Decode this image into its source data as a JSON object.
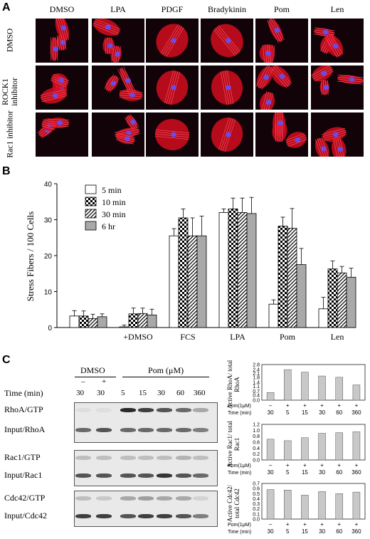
{
  "panelA": {
    "letter": "A",
    "columns": [
      "DMSO",
      "LPA",
      "PDGF",
      "Bradykinin",
      "Pom",
      "Len"
    ],
    "rows": [
      "DMSO",
      "ROCK1 inhibitor",
      "Rac1 inhibitor"
    ]
  },
  "panelB": {
    "letter": "B",
    "chart_data": {
      "type": "bar",
      "ylabel": "Stress Fibers / 100 Cells",
      "ylim": [
        0,
        40
      ],
      "yticks": [
        0,
        10,
        20,
        30,
        40
      ],
      "categories": [
        "",
        "+DMSO",
        "FCS",
        "LPA",
        "Pom",
        "Len"
      ],
      "series": [
        {
          "name": "5 min",
          "pattern": "white",
          "values": [
            3.2,
            0.2,
            25.5,
            32.0,
            6.5,
            5.2
          ],
          "errors": [
            1.5,
            0.5,
            2.0,
            1.0,
            1.2,
            3.2
          ]
        },
        {
          "name": "10 min",
          "pattern": "checker",
          "values": [
            3.2,
            3.8,
            30.5,
            33.0,
            28.2,
            16.3
          ],
          "errors": [
            1.4,
            1.6,
            2.5,
            3.0,
            2.5,
            2.2
          ]
        },
        {
          "name": "30 min",
          "pattern": "hatch",
          "values": [
            2.5,
            3.9,
            25.5,
            32.0,
            27.6,
            15.2
          ],
          "errors": [
            1.2,
            1.5,
            5.0,
            4.0,
            5.5,
            1.8
          ]
        },
        {
          "name": "6 hr",
          "pattern": "gray",
          "values": [
            3.0,
            3.5,
            25.5,
            31.7,
            17.5,
            14.0
          ],
          "errors": [
            0.8,
            1.6,
            5.5,
            4.5,
            4.5,
            2.5
          ]
        }
      ]
    }
  },
  "panelC": {
    "letter": "C",
    "header": {
      "dmso": "DMSO",
      "pom": "Pom (μM)",
      "time_label": "Time (min)",
      "signs": [
        "–",
        "+"
      ],
      "time_values": [
        "30",
        "30",
        "5",
        "15",
        "30",
        "60",
        "360"
      ]
    },
    "blots": [
      {
        "labels": [
          "RhoA/GTP",
          "Input/RhoA"
        ]
      },
      {
        "labels": [
          "Rac1/GTP",
          "Input/Rac1"
        ]
      },
      {
        "labels": [
          "Cdc42/GTP",
          "Input/Cdc42"
        ]
      }
    ],
    "chart_data": [
      {
        "type": "bar",
        "ylabel": "Active RhoA/ total RhoA",
        "ylim": [
          0,
          2.8
        ],
        "yticks": [
          "0.0",
          "0.4",
          "0.7",
          "1.1",
          "1.4",
          "1.8",
          "2.1",
          "2.4",
          "2.8"
        ],
        "values": [
          0.6,
          2.4,
          2.2,
          1.9,
          1.8,
          1.2
        ]
      },
      {
        "type": "bar",
        "ylabel": "Active Rac1/ total Rac1",
        "ylim": [
          0,
          1.2
        ],
        "yticks": [
          "0.0",
          "0.2",
          "0.4",
          "0.6",
          "0.8",
          "1.0",
          "1.2"
        ],
        "values": [
          0.7,
          0.65,
          0.75,
          0.9,
          0.92,
          0.95
        ]
      },
      {
        "type": "bar",
        "ylabel": "Active Cdc42/ total Cdc42",
        "ylim": [
          0,
          0.7
        ],
        "yticks": [
          "0.0",
          "0.1",
          "0.2",
          "0.3",
          "0.4",
          "0.5",
          "0.6",
          "0.7"
        ],
        "values": [
          0.58,
          0.57,
          0.47,
          0.54,
          0.5,
          0.53
        ]
      }
    ],
    "mini_axis": {
      "pom_label": "Pom(1μM)",
      "time_label": "Time (min)",
      "signs": [
        "–",
        "+",
        "+",
        "+",
        "+",
        "+"
      ],
      "times": [
        "30",
        "5",
        "15",
        "30",
        "60",
        "360"
      ]
    }
  }
}
